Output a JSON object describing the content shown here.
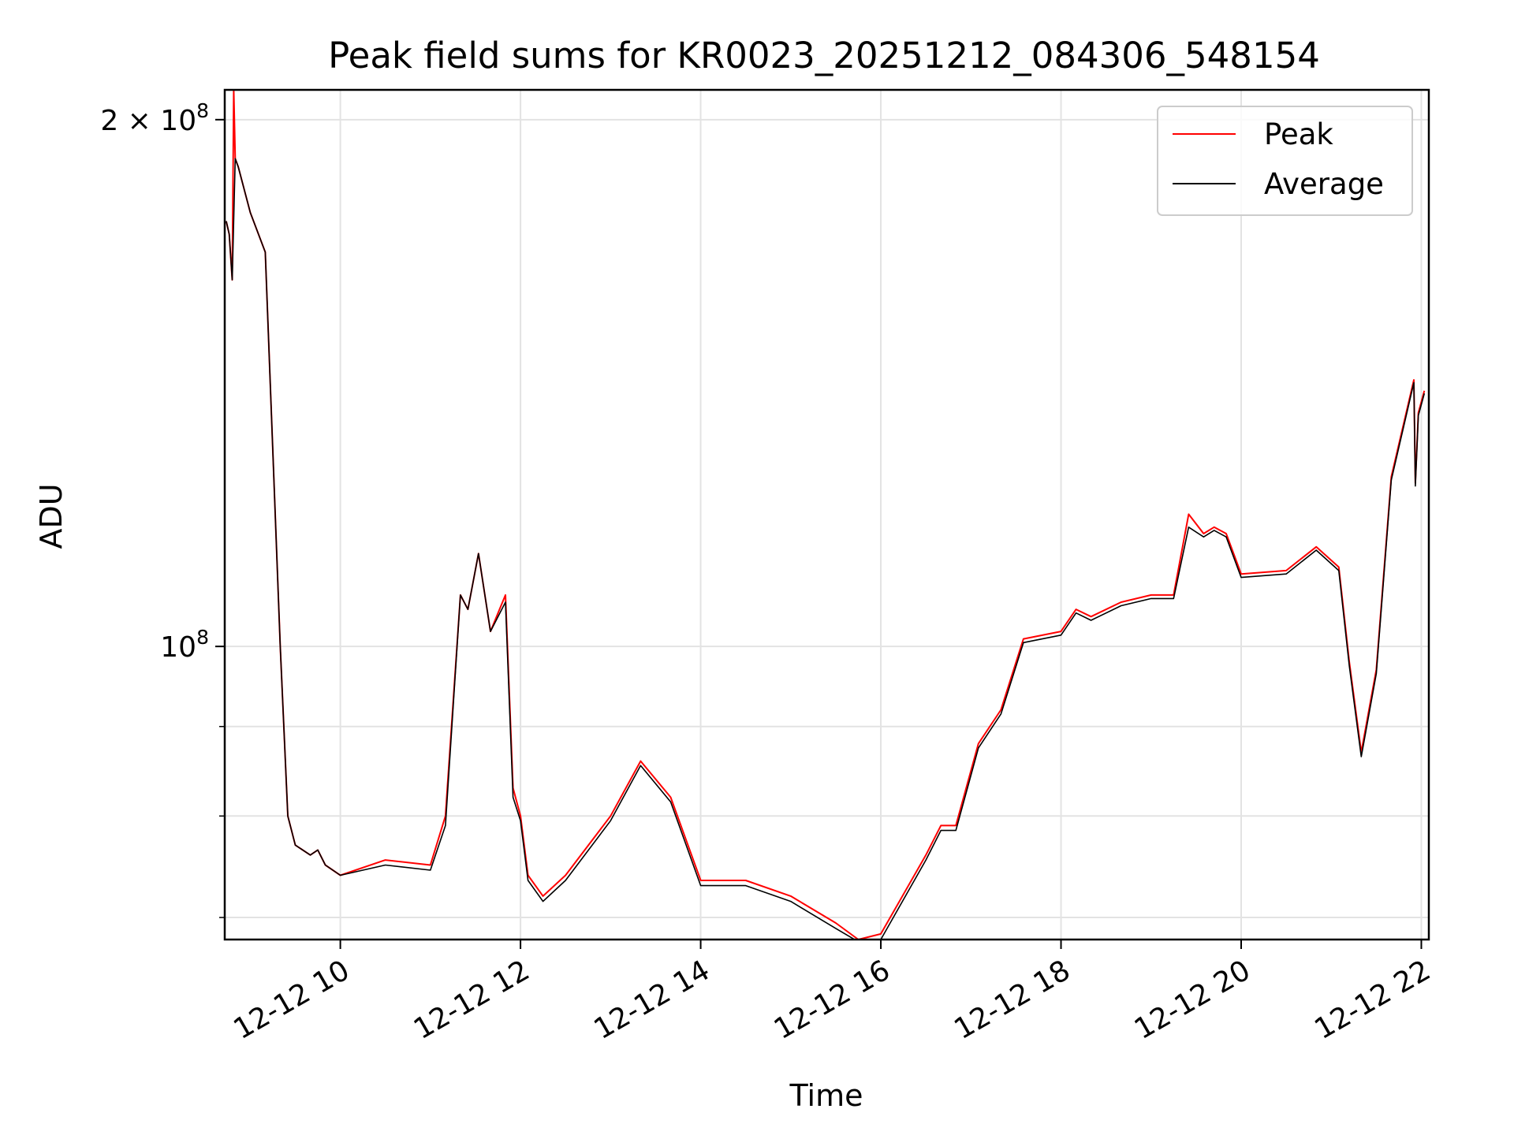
{
  "chart_data": {
    "type": "line",
    "title": "Peak field sums for KR0023_20251212_084306_548154",
    "xlabel": "Time",
    "ylabel": "ADU",
    "y_scale": "log",
    "xlim": [
      "2025-12-12 08:43",
      "2025-12-12 22:05"
    ],
    "ylim": [
      68000000,
      208000000
    ],
    "grid": true,
    "legend_position": "top-right",
    "x_ticks": [
      {
        "value": "2025-12-12 10:00",
        "label": "12-12 10"
      },
      {
        "value": "2025-12-12 12:00",
        "label": "12-12 12"
      },
      {
        "value": "2025-12-12 14:00",
        "label": "12-12 14"
      },
      {
        "value": "2025-12-12 16:00",
        "label": "12-12 16"
      },
      {
        "value": "2025-12-12 18:00",
        "label": "12-12 18"
      },
      {
        "value": "2025-12-12 20:00",
        "label": "12-12 20"
      },
      {
        "value": "2025-12-12 22:00",
        "label": "12-12 22"
      }
    ],
    "y_major_ticks": [
      {
        "value": 100000000,
        "base": "10",
        "exp": "8"
      },
      {
        "value": 200000000,
        "base": "2 × 10",
        "exp": "8"
      }
    ],
    "y_minor_ticks": [
      70000000,
      80000000,
      90000000
    ],
    "series": [
      {
        "name": "Peak",
        "color": "#ff0000",
        "x": [
          "2025-12-12 08:44",
          "2025-12-12 08:46",
          "2025-12-12 08:48",
          "2025-12-12 08:49",
          "2025-12-12 08:50",
          "2025-12-12 08:52",
          "2025-12-12 09:00",
          "2025-12-12 09:10",
          "2025-12-12 09:20",
          "2025-12-12 09:25",
          "2025-12-12 09:30",
          "2025-12-12 09:40",
          "2025-12-12 09:45",
          "2025-12-12 09:50",
          "2025-12-12 10:00",
          "2025-12-12 10:30",
          "2025-12-12 11:00",
          "2025-12-12 11:10",
          "2025-12-12 11:20",
          "2025-12-12 11:25",
          "2025-12-12 11:32",
          "2025-12-12 11:40",
          "2025-12-12 11:50",
          "2025-12-12 11:55",
          "2025-12-12 12:00",
          "2025-12-12 12:05",
          "2025-12-12 12:15",
          "2025-12-12 12:30",
          "2025-12-12 13:00",
          "2025-12-12 13:20",
          "2025-12-12 13:40",
          "2025-12-12 14:00",
          "2025-12-12 14:30",
          "2025-12-12 15:00",
          "2025-12-12 15:30",
          "2025-12-12 15:45",
          "2025-12-12 16:00",
          "2025-12-12 16:30",
          "2025-12-12 16:40",
          "2025-12-12 16:50",
          "2025-12-12 17:05",
          "2025-12-12 17:20",
          "2025-12-12 17:35",
          "2025-12-12 18:00",
          "2025-12-12 18:10",
          "2025-12-12 18:20",
          "2025-12-12 18:40",
          "2025-12-12 19:00",
          "2025-12-12 19:15",
          "2025-12-12 19:25",
          "2025-12-12 19:35",
          "2025-12-12 19:42",
          "2025-12-12 19:50",
          "2025-12-12 20:00",
          "2025-12-12 20:30",
          "2025-12-12 20:50",
          "2025-12-12 21:05",
          "2025-12-12 21:12",
          "2025-12-12 21:20",
          "2025-12-12 21:30",
          "2025-12-12 21:40",
          "2025-12-12 21:55",
          "2025-12-12 21:56",
          "2025-12-12 21:58",
          "2025-12-12 22:02"
        ],
        "values": [
          175000000,
          172000000,
          162000000,
          208000000,
          190000000,
          188000000,
          177000000,
          168000000,
          100000000,
          80000000,
          77000000,
          76000000,
          76500000,
          75000000,
          74000000,
          75500000,
          75000000,
          80000000,
          107000000,
          105000000,
          113000000,
          102000000,
          107000000,
          83000000,
          80000000,
          74000000,
          72000000,
          74000000,
          80000000,
          86000000,
          82000000,
          73500000,
          73500000,
          72000000,
          69500000,
          68000000,
          68500000,
          76000000,
          79000000,
          79000000,
          88000000,
          92000000,
          101000000,
          102000000,
          105000000,
          104000000,
          106000000,
          107000000,
          107000000,
          119000000,
          116000000,
          117000000,
          116000000,
          110000000,
          110500000,
          114000000,
          111000000,
          98000000,
          87000000,
          97000000,
          125000000,
          142000000,
          124000000,
          136000000,
          140000000
        ]
      },
      {
        "name": "Average",
        "color": "#000000",
        "x": [
          "2025-12-12 08:44",
          "2025-12-12 08:46",
          "2025-12-12 08:48",
          "2025-12-12 08:50",
          "2025-12-12 08:52",
          "2025-12-12 09:00",
          "2025-12-12 09:10",
          "2025-12-12 09:20",
          "2025-12-12 09:25",
          "2025-12-12 09:30",
          "2025-12-12 09:40",
          "2025-12-12 09:45",
          "2025-12-12 09:50",
          "2025-12-12 10:00",
          "2025-12-12 10:30",
          "2025-12-12 11:00",
          "2025-12-12 11:10",
          "2025-12-12 11:20",
          "2025-12-12 11:25",
          "2025-12-12 11:32",
          "2025-12-12 11:40",
          "2025-12-12 11:50",
          "2025-12-12 11:55",
          "2025-12-12 12:00",
          "2025-12-12 12:05",
          "2025-12-12 12:15",
          "2025-12-12 12:30",
          "2025-12-12 13:00",
          "2025-12-12 13:20",
          "2025-12-12 13:40",
          "2025-12-12 14:00",
          "2025-12-12 14:30",
          "2025-12-12 15:00",
          "2025-12-12 15:30",
          "2025-12-12 15:45",
          "2025-12-12 16:00",
          "2025-12-12 16:30",
          "2025-12-12 16:40",
          "2025-12-12 16:50",
          "2025-12-12 17:05",
          "2025-12-12 17:20",
          "2025-12-12 17:35",
          "2025-12-12 18:00",
          "2025-12-12 18:10",
          "2025-12-12 18:20",
          "2025-12-12 18:40",
          "2025-12-12 19:00",
          "2025-12-12 19:15",
          "2025-12-12 19:25",
          "2025-12-12 19:35",
          "2025-12-12 19:42",
          "2025-12-12 19:50",
          "2025-12-12 20:00",
          "2025-12-12 20:30",
          "2025-12-12 20:50",
          "2025-12-12 21:05",
          "2025-12-12 21:12",
          "2025-12-12 21:20",
          "2025-12-12 21:30",
          "2025-12-12 21:40",
          "2025-12-12 21:55",
          "2025-12-12 21:56",
          "2025-12-12 21:58",
          "2025-12-12 22:02"
        ],
        "values": [
          175000000,
          172000000,
          162000000,
          190000000,
          188000000,
          177000000,
          168000000,
          100000000,
          80000000,
          77000000,
          76000000,
          76500000,
          75000000,
          74000000,
          75000000,
          74500000,
          79000000,
          107000000,
          105000000,
          113000000,
          102000000,
          106000000,
          82000000,
          79500000,
          73500000,
          71500000,
          73500000,
          79500000,
          85500000,
          81500000,
          73000000,
          73000000,
          71500000,
          69000000,
          67800000,
          68000000,
          75500000,
          78500000,
          78500000,
          87500000,
          91500000,
          100500000,
          101500000,
          104500000,
          103500000,
          105500000,
          106500000,
          106500000,
          117000000,
          115500000,
          116500000,
          115500000,
          109500000,
          110000000,
          113500000,
          110500000,
          97500000,
          86500000,
          96500000,
          124500000,
          141500000,
          123500000,
          135500000,
          139500000
        ]
      }
    ]
  }
}
